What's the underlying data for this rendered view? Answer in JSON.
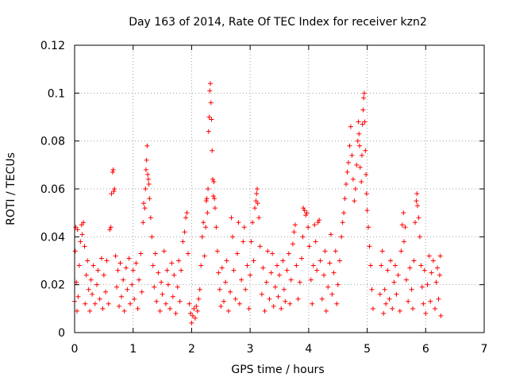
{
  "colors": {
    "series": "#ff0000",
    "background": "#ffffff",
    "axis": "#000000",
    "grid": "#a0a0a0"
  },
  "chart_data": {
    "type": "scatter",
    "title": "Day 163 of 2014, Rate Of TEC Index for receiver kzn2",
    "xlabel": "GPS time / hours",
    "ylabel": "ROTI / TECUs",
    "xlim": [
      0,
      7
    ],
    "ylim": [
      0,
      0.12
    ],
    "grid": true,
    "marker": "plus",
    "xticks": [
      0,
      1,
      2,
      3,
      4,
      5,
      6,
      7
    ],
    "xtick_labels": [
      "0",
      "1",
      "2",
      "3",
      "4",
      "5",
      "6",
      "7"
    ],
    "yticks": [
      0,
      0.02,
      0.04,
      0.06,
      0.08,
      0.1,
      0.12
    ],
    "ytick_labels": [
      "0",
      "0.02",
      "0.04",
      "0.06",
      "0.08",
      "0.1",
      "0.12"
    ],
    "series": [
      {
        "name": "ROTI",
        "points": [
          [
            0.0,
            0.013
          ],
          [
            0.01,
            0.034
          ],
          [
            0.02,
            0.044
          ],
          [
            0.03,
            0.021
          ],
          [
            0.04,
            0.009
          ],
          [
            0.05,
            0.043
          ],
          [
            0.06,
            0.015
          ],
          [
            0.08,
            0.028
          ],
          [
            0.1,
            0.038
          ],
          [
            0.12,
            0.045
          ],
          [
            0.13,
            0.041
          ],
          [
            0.15,
            0.046
          ],
          [
            0.17,
            0.036
          ],
          [
            0.18,
            0.012
          ],
          [
            0.2,
            0.024
          ],
          [
            0.22,
            0.03
          ],
          [
            0.24,
            0.018
          ],
          [
            0.26,
            0.009
          ],
          [
            0.28,
            0.022
          ],
          [
            0.3,
            0.016
          ],
          [
            0.32,
            0.028
          ],
          [
            0.35,
            0.012
          ],
          [
            0.38,
            0.02
          ],
          [
            0.4,
            0.026
          ],
          [
            0.43,
            0.014
          ],
          [
            0.46,
            0.031
          ],
          [
            0.48,
            0.01
          ],
          [
            0.5,
            0.024
          ],
          [
            0.53,
            0.017
          ],
          [
            0.55,
            0.03
          ],
          [
            0.58,
            0.012
          ],
          [
            0.6,
            0.043
          ],
          [
            0.62,
            0.044
          ],
          [
            0.63,
            0.058
          ],
          [
            0.65,
            0.067
          ],
          [
            0.66,
            0.068
          ],
          [
            0.67,
            0.059
          ],
          [
            0.68,
            0.06
          ],
          [
            0.7,
            0.032
          ],
          [
            0.72,
            0.019
          ],
          [
            0.74,
            0.026
          ],
          [
            0.76,
            0.011
          ],
          [
            0.78,
            0.029
          ],
          [
            0.8,
            0.015
          ],
          [
            0.83,
            0.022
          ],
          [
            0.85,
            0.009
          ],
          [
            0.88,
            0.027
          ],
          [
            0.9,
            0.018
          ],
          [
            0.93,
            0.031
          ],
          [
            0.95,
            0.012
          ],
          [
            0.98,
            0.02
          ],
          [
            1.0,
            0.026
          ],
          [
            1.02,
            0.014
          ],
          [
            1.05,
            0.029
          ],
          [
            1.08,
            0.01
          ],
          [
            1.1,
            0.022
          ],
          [
            1.13,
            0.033
          ],
          [
            1.15,
            0.017
          ],
          [
            1.17,
            0.046
          ],
          [
            1.18,
            0.054
          ],
          [
            1.2,
            0.052
          ],
          [
            1.21,
            0.06
          ],
          [
            1.22,
            0.068
          ],
          [
            1.23,
            0.072
          ],
          [
            1.24,
            0.078
          ],
          [
            1.25,
            0.066
          ],
          [
            1.26,
            0.064
          ],
          [
            1.27,
            0.062
          ],
          [
            1.28,
            0.056
          ],
          [
            1.3,
            0.048
          ],
          [
            1.32,
            0.04
          ],
          [
            1.34,
            0.028
          ],
          [
            1.36,
            0.019
          ],
          [
            1.38,
            0.033
          ],
          [
            1.4,
            0.013
          ],
          [
            1.43,
            0.025
          ],
          [
            1.46,
            0.009
          ],
          [
            1.48,
            0.021
          ],
          [
            1.5,
            0.016
          ],
          [
            1.53,
            0.034
          ],
          [
            1.56,
            0.012
          ],
          [
            1.58,
            0.026
          ],
          [
            1.6,
            0.02
          ],
          [
            1.63,
            0.01
          ],
          [
            1.66,
            0.029
          ],
          [
            1.68,
            0.015
          ],
          [
            1.7,
            0.024
          ],
          [
            1.73,
            0.008
          ],
          [
            1.76,
            0.019
          ],
          [
            1.78,
            0.03
          ],
          [
            1.8,
            0.013
          ],
          [
            1.82,
            0.026
          ],
          [
            1.85,
            0.038
          ],
          [
            1.88,
            0.042
          ],
          [
            1.9,
            0.048
          ],
          [
            1.92,
            0.05
          ],
          [
            1.94,
            0.033
          ],
          [
            1.96,
            0.012
          ],
          [
            1.98,
            0.008
          ],
          [
            2.0,
            0.004
          ],
          [
            2.02,
            0.007
          ],
          [
            2.04,
            0.01
          ],
          [
            2.06,
            0.006
          ],
          [
            2.08,
            0.011
          ],
          [
            2.1,
            0.009
          ],
          [
            2.12,
            0.014
          ],
          [
            2.14,
            0.018
          ],
          [
            2.16,
            0.028
          ],
          [
            2.18,
            0.04
          ],
          [
            2.2,
            0.046
          ],
          [
            2.22,
            0.032
          ],
          [
            2.24,
            0.044
          ],
          [
            2.25,
            0.055
          ],
          [
            2.26,
            0.056
          ],
          [
            2.27,
            0.05
          ],
          [
            2.28,
            0.06
          ],
          [
            2.29,
            0.084
          ],
          [
            2.3,
            0.09
          ],
          [
            2.31,
            0.101
          ],
          [
            2.32,
            0.104
          ],
          [
            2.33,
            0.096
          ],
          [
            2.34,
            0.089
          ],
          [
            2.35,
            0.076
          ],
          [
            2.36,
            0.064
          ],
          [
            2.37,
            0.057
          ],
          [
            2.38,
            0.063
          ],
          [
            2.39,
            0.056
          ],
          [
            2.4,
            0.052
          ],
          [
            2.42,
            0.044
          ],
          [
            2.44,
            0.034
          ],
          [
            2.46,
            0.025
          ],
          [
            2.48,
            0.018
          ],
          [
            2.5,
            0.011
          ],
          [
            2.52,
            0.027
          ],
          [
            2.55,
            0.013
          ],
          [
            2.58,
            0.021
          ],
          [
            2.6,
            0.03
          ],
          [
            2.63,
            0.009
          ],
          [
            2.66,
            0.017
          ],
          [
            2.68,
            0.048
          ],
          [
            2.7,
            0.04
          ],
          [
            2.72,
            0.026
          ],
          [
            2.75,
            0.014
          ],
          [
            2.78,
            0.033
          ],
          [
            2.8,
            0.046
          ],
          [
            2.82,
            0.012
          ],
          [
            2.85,
            0.022
          ],
          [
            2.88,
            0.038
          ],
          [
            2.9,
            0.044
          ],
          [
            2.92,
            0.018
          ],
          [
            2.95,
            0.028
          ],
          [
            2.98,
            0.01
          ],
          [
            3.0,
            0.024
          ],
          [
            3.02,
            0.038
          ],
          [
            3.04,
            0.046
          ],
          [
            3.06,
            0.03
          ],
          [
            3.08,
            0.052
          ],
          [
            3.1,
            0.055
          ],
          [
            3.11,
            0.058
          ],
          [
            3.12,
            0.06
          ],
          [
            3.13,
            0.054
          ],
          [
            3.15,
            0.048
          ],
          [
            3.17,
            0.036
          ],
          [
            3.2,
            0.016
          ],
          [
            3.22,
            0.027
          ],
          [
            3.25,
            0.009
          ],
          [
            3.28,
            0.021
          ],
          [
            3.3,
            0.034
          ],
          [
            3.33,
            0.014
          ],
          [
            3.36,
            0.025
          ],
          [
            3.38,
            0.033
          ],
          [
            3.4,
            0.011
          ],
          [
            3.43,
            0.019
          ],
          [
            3.46,
            0.028
          ],
          [
            3.48,
            0.015
          ],
          [
            3.5,
            0.024
          ],
          [
            3.53,
            0.01
          ],
          [
            3.56,
            0.03
          ],
          [
            3.58,
            0.018
          ],
          [
            3.6,
            0.013
          ],
          [
            3.63,
            0.026
          ],
          [
            3.66,
            0.033
          ],
          [
            3.68,
            0.012
          ],
          [
            3.7,
            0.022
          ],
          [
            3.73,
            0.037
          ],
          [
            3.75,
            0.042
          ],
          [
            3.77,
            0.045
          ],
          [
            3.79,
            0.028
          ],
          [
            3.82,
            0.014
          ],
          [
            3.85,
            0.021
          ],
          [
            3.88,
            0.031
          ],
          [
            3.9,
            0.04
          ],
          [
            3.91,
            0.052
          ],
          [
            3.93,
            0.051
          ],
          [
            3.95,
            0.049
          ],
          [
            3.97,
            0.05
          ],
          [
            3.99,
            0.044
          ],
          [
            4.01,
            0.036
          ],
          [
            4.04,
            0.022
          ],
          [
            4.06,
            0.012
          ],
          [
            4.08,
            0.028
          ],
          [
            4.1,
            0.045
          ],
          [
            4.12,
            0.038
          ],
          [
            4.14,
            0.026
          ],
          [
            4.16,
            0.046
          ],
          [
            4.18,
            0.047
          ],
          [
            4.2,
            0.03
          ],
          [
            4.23,
            0.014
          ],
          [
            4.26,
            0.024
          ],
          [
            4.28,
            0.034
          ],
          [
            4.3,
            0.009
          ],
          [
            4.33,
            0.019
          ],
          [
            4.36,
            0.029
          ],
          [
            4.38,
            0.041
          ],
          [
            4.4,
            0.016
          ],
          [
            4.43,
            0.025
          ],
          [
            4.46,
            0.034
          ],
          [
            4.48,
            0.012
          ],
          [
            4.5,
            0.02
          ],
          [
            4.53,
            0.03
          ],
          [
            4.56,
            0.04
          ],
          [
            4.58,
            0.046
          ],
          [
            4.6,
            0.05
          ],
          [
            4.62,
            0.056
          ],
          [
            4.64,
            0.062
          ],
          [
            4.66,
            0.067
          ],
          [
            4.68,
            0.071
          ],
          [
            4.7,
            0.078
          ],
          [
            4.72,
            0.086
          ],
          [
            4.74,
            0.074
          ],
          [
            4.76,
            0.064
          ],
          [
            4.78,
            0.055
          ],
          [
            4.8,
            0.06
          ],
          [
            4.82,
            0.07
          ],
          [
            4.84,
            0.08
          ],
          [
            4.85,
            0.088
          ],
          [
            4.86,
            0.083
          ],
          [
            4.87,
            0.078
          ],
          [
            4.88,
            0.069
          ],
          [
            4.9,
            0.063
          ],
          [
            4.91,
            0.074
          ],
          [
            4.92,
            0.087
          ],
          [
            4.93,
            0.093
          ],
          [
            4.94,
            0.098
          ],
          [
            4.95,
            0.1
          ],
          [
            4.96,
            0.088
          ],
          [
            4.97,
            0.076
          ],
          [
            4.98,
            0.066
          ],
          [
            4.99,
            0.058
          ],
          [
            5.0,
            0.051
          ],
          [
            5.02,
            0.044
          ],
          [
            5.04,
            0.036
          ],
          [
            5.06,
            0.028
          ],
          [
            5.08,
            0.018
          ],
          [
            5.1,
            0.01
          ],
          [
            5.22,
            0.016
          ],
          [
            5.24,
            0.028
          ],
          [
            5.26,
            0.034
          ],
          [
            5.28,
            0.008
          ],
          [
            5.3,
            0.018
          ],
          [
            5.32,
            0.012
          ],
          [
            5.35,
            0.026
          ],
          [
            5.38,
            0.014
          ],
          [
            5.4,
            0.03
          ],
          [
            5.43,
            0.01
          ],
          [
            5.46,
            0.021
          ],
          [
            5.48,
            0.028
          ],
          [
            5.5,
            0.016
          ],
          [
            5.53,
            0.024
          ],
          [
            5.56,
            0.009
          ],
          [
            5.58,
            0.034
          ],
          [
            5.6,
            0.045
          ],
          [
            5.62,
            0.05
          ],
          [
            5.63,
            0.038
          ],
          [
            5.65,
            0.044
          ],
          [
            5.67,
            0.022
          ],
          [
            5.7,
            0.013
          ],
          [
            5.73,
            0.027
          ],
          [
            5.76,
            0.018
          ],
          [
            5.78,
            0.01
          ],
          [
            5.8,
            0.03
          ],
          [
            5.82,
            0.046
          ],
          [
            5.84,
            0.055
          ],
          [
            5.85,
            0.058
          ],
          [
            5.86,
            0.053
          ],
          [
            5.88,
            0.048
          ],
          [
            5.9,
            0.04
          ],
          [
            5.92,
            0.028
          ],
          [
            5.94,
            0.019
          ],
          [
            5.96,
            0.012
          ],
          [
            5.98,
            0.026
          ],
          [
            6.0,
            0.008
          ],
          [
            6.03,
            0.02
          ],
          [
            6.06,
            0.032
          ],
          [
            6.08,
            0.013
          ],
          [
            6.1,
            0.025
          ],
          [
            6.13,
            0.03
          ],
          [
            6.16,
            0.01
          ],
          [
            6.18,
            0.021
          ],
          [
            6.2,
            0.027
          ],
          [
            6.22,
            0.014
          ],
          [
            6.24,
            0.024
          ],
          [
            6.25,
            0.032
          ],
          [
            6.26,
            0.007
          ]
        ]
      }
    ]
  }
}
